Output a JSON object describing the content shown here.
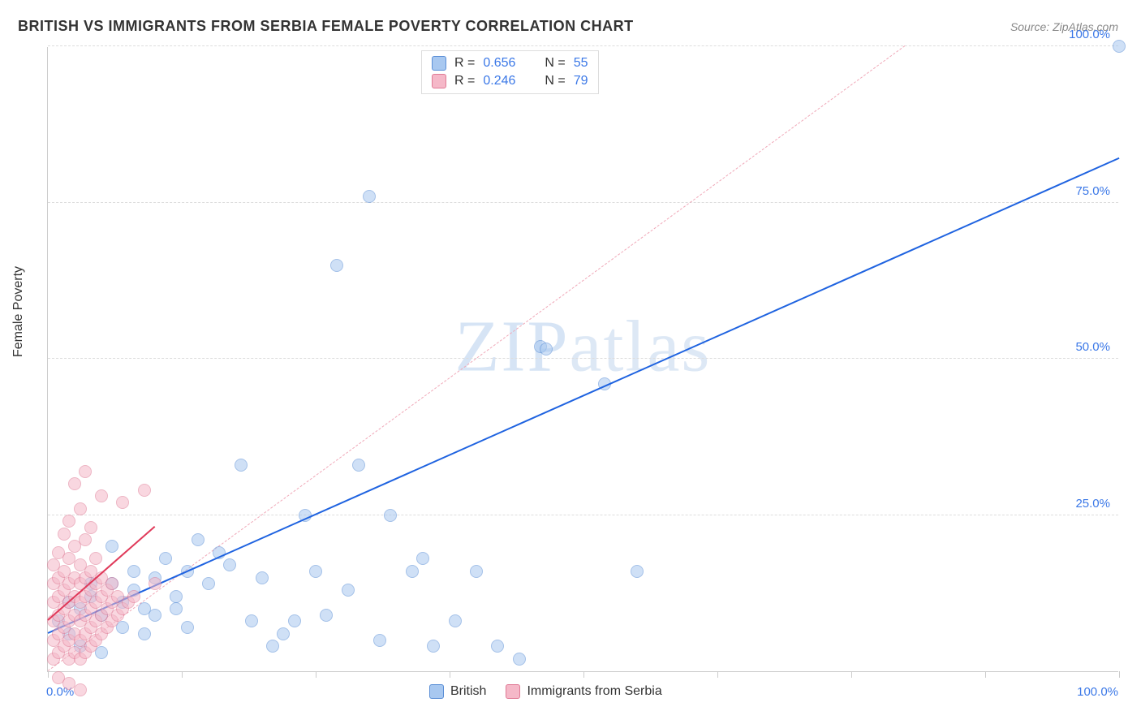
{
  "title": "BRITISH VS IMMIGRANTS FROM SERBIA FEMALE POVERTY CORRELATION CHART",
  "source": "Source: ZipAtlas.com",
  "ylabel": "Female Poverty",
  "watermark_bold": "ZIP",
  "watermark_light": "atlas",
  "chart": {
    "type": "scatter",
    "xlim": [
      0,
      100
    ],
    "ylim": [
      0,
      100
    ],
    "grid_y": [
      25,
      50,
      75,
      100
    ],
    "grid_color": "#dddddd",
    "y_tick_labels": [
      "25.0%",
      "50.0%",
      "75.0%",
      "100.0%"
    ],
    "x_tick_positions": [
      0,
      12.5,
      25,
      37.5,
      50,
      62.5,
      75,
      87.5,
      100
    ],
    "x_origin_label": "0.0%",
    "x_max_label": "100.0%",
    "axis_label_color": "#3b78e7",
    "background_color": "#ffffff",
    "marker_radius": 8,
    "marker_opacity": 0.55,
    "series": [
      {
        "name": "British",
        "color_fill": "#a8c8f0",
        "color_stroke": "#5b8fd6",
        "R": "0.656",
        "N": "55",
        "trend": {
          "x1": 0,
          "y1": 6,
          "x2": 100,
          "y2": 82,
          "color": "#1f63e0",
          "width": 2.5,
          "dash": "solid"
        },
        "diag": {
          "x1": 0,
          "y1": 0,
          "x2": 80,
          "y2": 100,
          "color": "#f0a8b8",
          "width": 1,
          "dash": "dashed"
        },
        "points": [
          [
            100,
            100
          ],
          [
            1,
            8
          ],
          [
            2,
            6
          ],
          [
            3,
            10
          ],
          [
            4,
            12
          ],
          [
            5,
            9
          ],
          [
            6,
            14
          ],
          [
            7,
            11
          ],
          [
            8,
            13
          ],
          [
            9,
            10
          ],
          [
            10,
            15
          ],
          [
            11,
            18
          ],
          [
            12,
            12
          ],
          [
            13,
            16
          ],
          [
            14,
            21
          ],
          [
            15,
            14
          ],
          [
            16,
            19
          ],
          [
            17,
            17
          ],
          [
            18,
            33
          ],
          [
            19,
            8
          ],
          [
            20,
            15
          ],
          [
            21,
            4
          ],
          [
            22,
            6
          ],
          [
            23,
            8
          ],
          [
            24,
            25
          ],
          [
            25,
            16
          ],
          [
            26,
            9
          ],
          [
            27,
            65
          ],
          [
            28,
            13
          ],
          [
            29,
            33
          ],
          [
            30,
            76
          ],
          [
            31,
            5
          ],
          [
            32,
            25
          ],
          [
            34,
            16
          ],
          [
            35,
            18
          ],
          [
            36,
            4
          ],
          [
            38,
            8
          ],
          [
            40,
            16
          ],
          [
            42,
            4
          ],
          [
            44,
            2
          ],
          [
            46,
            52
          ],
          [
            46.5,
            51.5
          ],
          [
            52,
            46
          ],
          [
            55,
            16
          ],
          [
            6,
            20
          ],
          [
            8,
            16
          ],
          [
            3,
            4
          ],
          [
            5,
            3
          ],
          [
            7,
            7
          ],
          [
            2,
            11
          ],
          [
            4,
            14
          ],
          [
            10,
            9
          ],
          [
            12,
            10
          ],
          [
            13,
            7
          ],
          [
            9,
            6
          ]
        ]
      },
      {
        "name": "Immigrants from Serbia",
        "color_fill": "#f5b8c8",
        "color_stroke": "#e07a95",
        "R": "0.246",
        "N": "79",
        "trend": {
          "x1": 0,
          "y1": 8,
          "x2": 10,
          "y2": 23,
          "color": "#e03a5a",
          "width": 2.5,
          "dash": "solid"
        },
        "points": [
          [
            0.5,
            2
          ],
          [
            0.5,
            5
          ],
          [
            0.5,
            8
          ],
          [
            0.5,
            11
          ],
          [
            0.5,
            14
          ],
          [
            0.5,
            17
          ],
          [
            1,
            3
          ],
          [
            1,
            6
          ],
          [
            1,
            9
          ],
          [
            1,
            12
          ],
          [
            1,
            15
          ],
          [
            1,
            19
          ],
          [
            1.5,
            4
          ],
          [
            1.5,
            7
          ],
          [
            1.5,
            10
          ],
          [
            1.5,
            13
          ],
          [
            1.5,
            16
          ],
          [
            1.5,
            22
          ],
          [
            2,
            2
          ],
          [
            2,
            5
          ],
          [
            2,
            8
          ],
          [
            2,
            11
          ],
          [
            2,
            14
          ],
          [
            2,
            18
          ],
          [
            2,
            24
          ],
          [
            2.5,
            3
          ],
          [
            2.5,
            6
          ],
          [
            2.5,
            9
          ],
          [
            2.5,
            12
          ],
          [
            2.5,
            15
          ],
          [
            2.5,
            20
          ],
          [
            2.5,
            30
          ],
          [
            3,
            2
          ],
          [
            3,
            5
          ],
          [
            3,
            8
          ],
          [
            3,
            11
          ],
          [
            3,
            14
          ],
          [
            3,
            17
          ],
          [
            3,
            26
          ],
          [
            3.5,
            3
          ],
          [
            3.5,
            6
          ],
          [
            3.5,
            9
          ],
          [
            3.5,
            12
          ],
          [
            3.5,
            15
          ],
          [
            3.5,
            21
          ],
          [
            3.5,
            32
          ],
          [
            4,
            4
          ],
          [
            4,
            7
          ],
          [
            4,
            10
          ],
          [
            4,
            13
          ],
          [
            4,
            16
          ],
          [
            4,
            23
          ],
          [
            4.5,
            5
          ],
          [
            4.5,
            8
          ],
          [
            4.5,
            11
          ],
          [
            4.5,
            14
          ],
          [
            4.5,
            18
          ],
          [
            5,
            6
          ],
          [
            5,
            9
          ],
          [
            5,
            12
          ],
          [
            5,
            15
          ],
          [
            5,
            28
          ],
          [
            5.5,
            7
          ],
          [
            5.5,
            10
          ],
          [
            5.5,
            13
          ],
          [
            6,
            8
          ],
          [
            6,
            11
          ],
          [
            6,
            14
          ],
          [
            6.5,
            9
          ],
          [
            6.5,
            12
          ],
          [
            7,
            10
          ],
          [
            7,
            27
          ],
          [
            7.5,
            11
          ],
          [
            8,
            12
          ],
          [
            9,
            29
          ],
          [
            10,
            14
          ],
          [
            1,
            -1
          ],
          [
            2,
            -2
          ],
          [
            3,
            -3
          ]
        ]
      }
    ]
  },
  "legend_bottom": [
    {
      "label": "British",
      "fill": "#a8c8f0",
      "stroke": "#5b8fd6"
    },
    {
      "label": "Immigrants from Serbia",
      "fill": "#f5b8c8",
      "stroke": "#e07a95"
    }
  ]
}
